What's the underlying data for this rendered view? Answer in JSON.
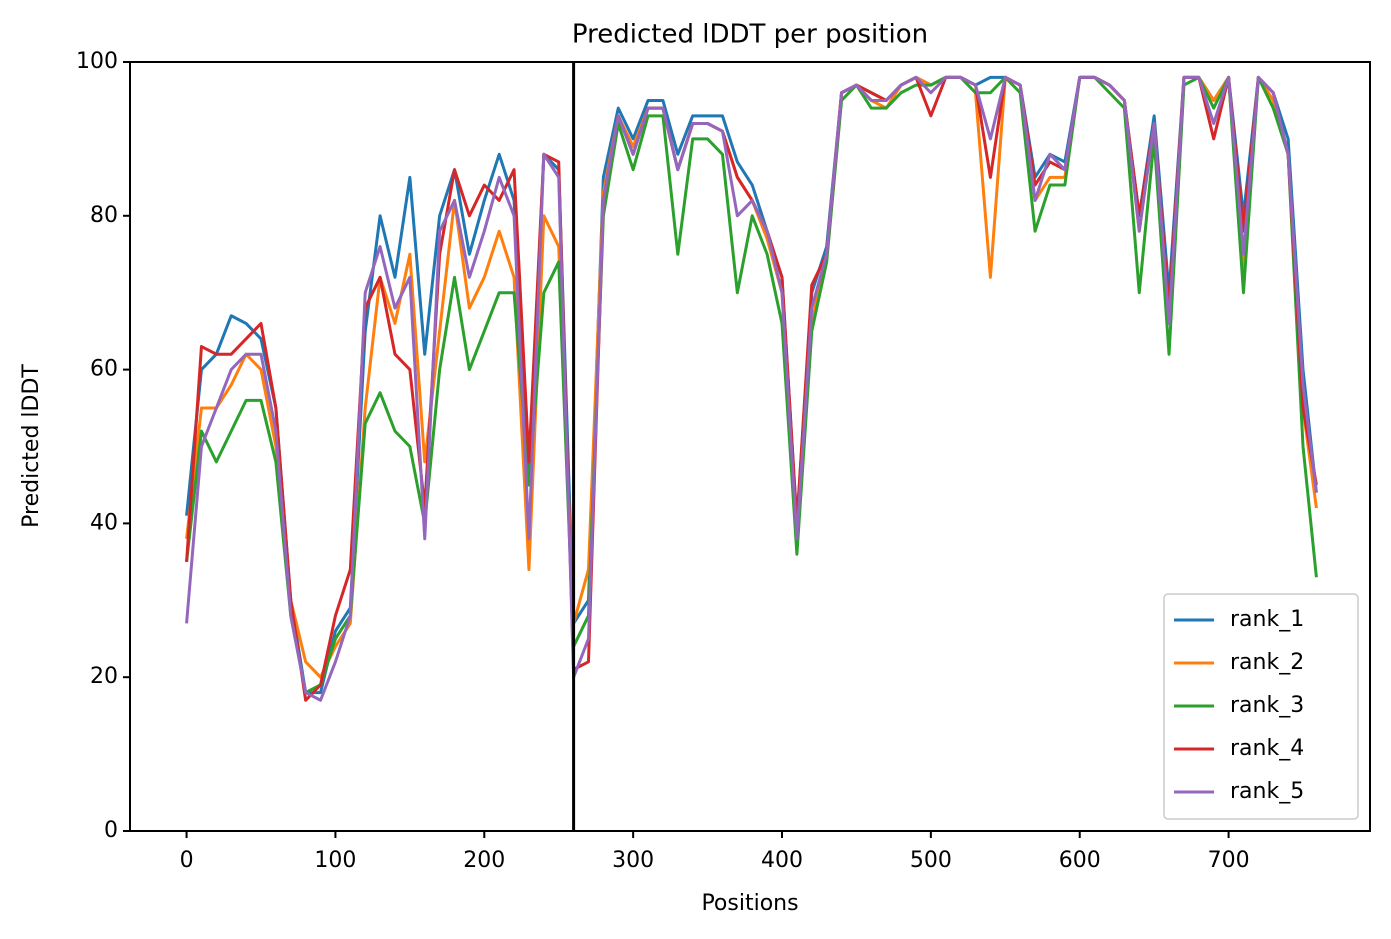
{
  "chart_data": {
    "type": "line",
    "title": "Predicted lDDT per position",
    "xlabel": "Positions",
    "ylabel": "Predicted lDDT",
    "x": [
      0,
      10,
      20,
      30,
      40,
      50,
      60,
      70,
      80,
      90,
      100,
      110,
      120,
      130,
      140,
      150,
      160,
      170,
      180,
      190,
      200,
      210,
      220,
      230,
      240,
      250,
      260,
      270,
      280,
      290,
      300,
      310,
      320,
      330,
      340,
      350,
      360,
      370,
      380,
      390,
      400,
      410,
      420,
      430,
      440,
      450,
      460,
      470,
      480,
      490,
      500,
      510,
      520,
      530,
      540,
      550,
      560,
      570,
      580,
      590,
      600,
      610,
      620,
      630,
      640,
      650,
      660,
      670,
      680,
      690,
      700,
      710,
      720,
      730,
      740,
      750,
      759
    ],
    "series": [
      {
        "name": "rank_1",
        "color": "#1f77b4",
        "values": [
          41,
          60,
          62,
          67,
          66,
          64,
          55,
          30,
          18,
          18,
          26,
          29,
          65,
          80,
          72,
          85,
          62,
          80,
          86,
          75,
          82,
          88,
          82,
          45,
          88,
          86,
          27,
          30,
          85,
          94,
          90,
          95,
          95,
          88,
          93,
          93,
          93,
          87,
          84,
          78,
          72,
          40,
          70,
          76,
          96,
          97,
          96,
          95,
          97,
          98,
          97,
          98,
          98,
          97,
          98,
          98,
          97,
          85,
          88,
          87,
          98,
          98,
          97,
          95,
          80,
          93,
          70,
          98,
          98,
          95,
          98,
          80,
          98,
          96,
          90,
          60,
          44
        ]
      },
      {
        "name": "rank_2",
        "color": "#ff7f0e",
        "values": [
          38,
          55,
          55,
          58,
          62,
          60,
          50,
          30,
          22,
          20,
          24,
          27,
          55,
          72,
          66,
          75,
          48,
          65,
          82,
          68,
          72,
          78,
          72,
          34,
          80,
          76,
          27,
          34,
          83,
          93,
          89,
          94,
          94,
          86,
          92,
          92,
          91,
          85,
          82,
          77,
          70,
          38,
          66,
          75,
          96,
          97,
          95,
          94,
          97,
          98,
          97,
          98,
          98,
          96,
          72,
          98,
          97,
          82,
          85,
          85,
          98,
          98,
          97,
          95,
          78,
          92,
          67,
          98,
          98,
          95,
          98,
          72,
          98,
          95,
          88,
          55,
          42
        ]
      },
      {
        "name": "rank_3",
        "color": "#2ca02c",
        "values": [
          35,
          52,
          48,
          52,
          56,
          56,
          48,
          28,
          18,
          19,
          25,
          28,
          53,
          57,
          52,
          50,
          40,
          60,
          72,
          60,
          65,
          70,
          70,
          45,
          70,
          74,
          24,
          28,
          80,
          92,
          86,
          93,
          93,
          75,
          90,
          90,
          88,
          70,
          80,
          75,
          66,
          36,
          65,
          74,
          95,
          97,
          94,
          94,
          96,
          97,
          97,
          98,
          98,
          96,
          96,
          98,
          96,
          78,
          84,
          84,
          98,
          98,
          96,
          94,
          70,
          90,
          62,
          97,
          98,
          94,
          98,
          70,
          98,
          94,
          88,
          50,
          33
        ]
      },
      {
        "name": "rank_4",
        "color": "#d62728",
        "values": [
          35,
          63,
          62,
          62,
          64,
          66,
          55,
          30,
          17,
          19,
          28,
          34,
          68,
          72,
          62,
          60,
          42,
          75,
          86,
          80,
          84,
          82,
          86,
          48,
          88,
          87,
          21,
          22,
          82,
          93,
          88,
          94,
          94,
          86,
          92,
          92,
          91,
          85,
          82,
          78,
          72,
          40,
          71,
          75,
          96,
          97,
          96,
          95,
          97,
          98,
          93,
          98,
          98,
          97,
          85,
          98,
          97,
          84,
          87,
          86,
          98,
          98,
          97,
          95,
          80,
          92,
          68,
          98,
          98,
          90,
          98,
          78,
          98,
          96,
          88,
          55,
          45
        ]
      },
      {
        "name": "rank_5",
        "color": "#9467bd",
        "values": [
          27,
          50,
          55,
          60,
          62,
          62,
          52,
          28,
          18,
          17,
          22,
          28,
          70,
          76,
          68,
          72,
          38,
          78,
          82,
          72,
          78,
          85,
          80,
          38,
          88,
          85,
          20,
          25,
          82,
          93,
          88,
          94,
          94,
          86,
          92,
          92,
          91,
          80,
          82,
          78,
          70,
          38,
          68,
          75,
          96,
          97,
          95,
          95,
          97,
          98,
          96,
          98,
          98,
          97,
          90,
          98,
          97,
          82,
          88,
          86,
          98,
          98,
          97,
          95,
          78,
          92,
          66,
          98,
          98,
          92,
          98,
          75,
          98,
          96,
          88,
          58,
          44
        ]
      }
    ],
    "vlines": [
      260
    ],
    "vline_color": "#000000",
    "xlim": [
      -38,
      795
    ],
    "ylim": [
      0,
      100
    ],
    "xticks": [
      0,
      100,
      200,
      300,
      400,
      500,
      600,
      700
    ],
    "yticks": [
      0,
      20,
      40,
      60,
      80,
      100
    ],
    "grid": false,
    "legend": "lower right"
  }
}
